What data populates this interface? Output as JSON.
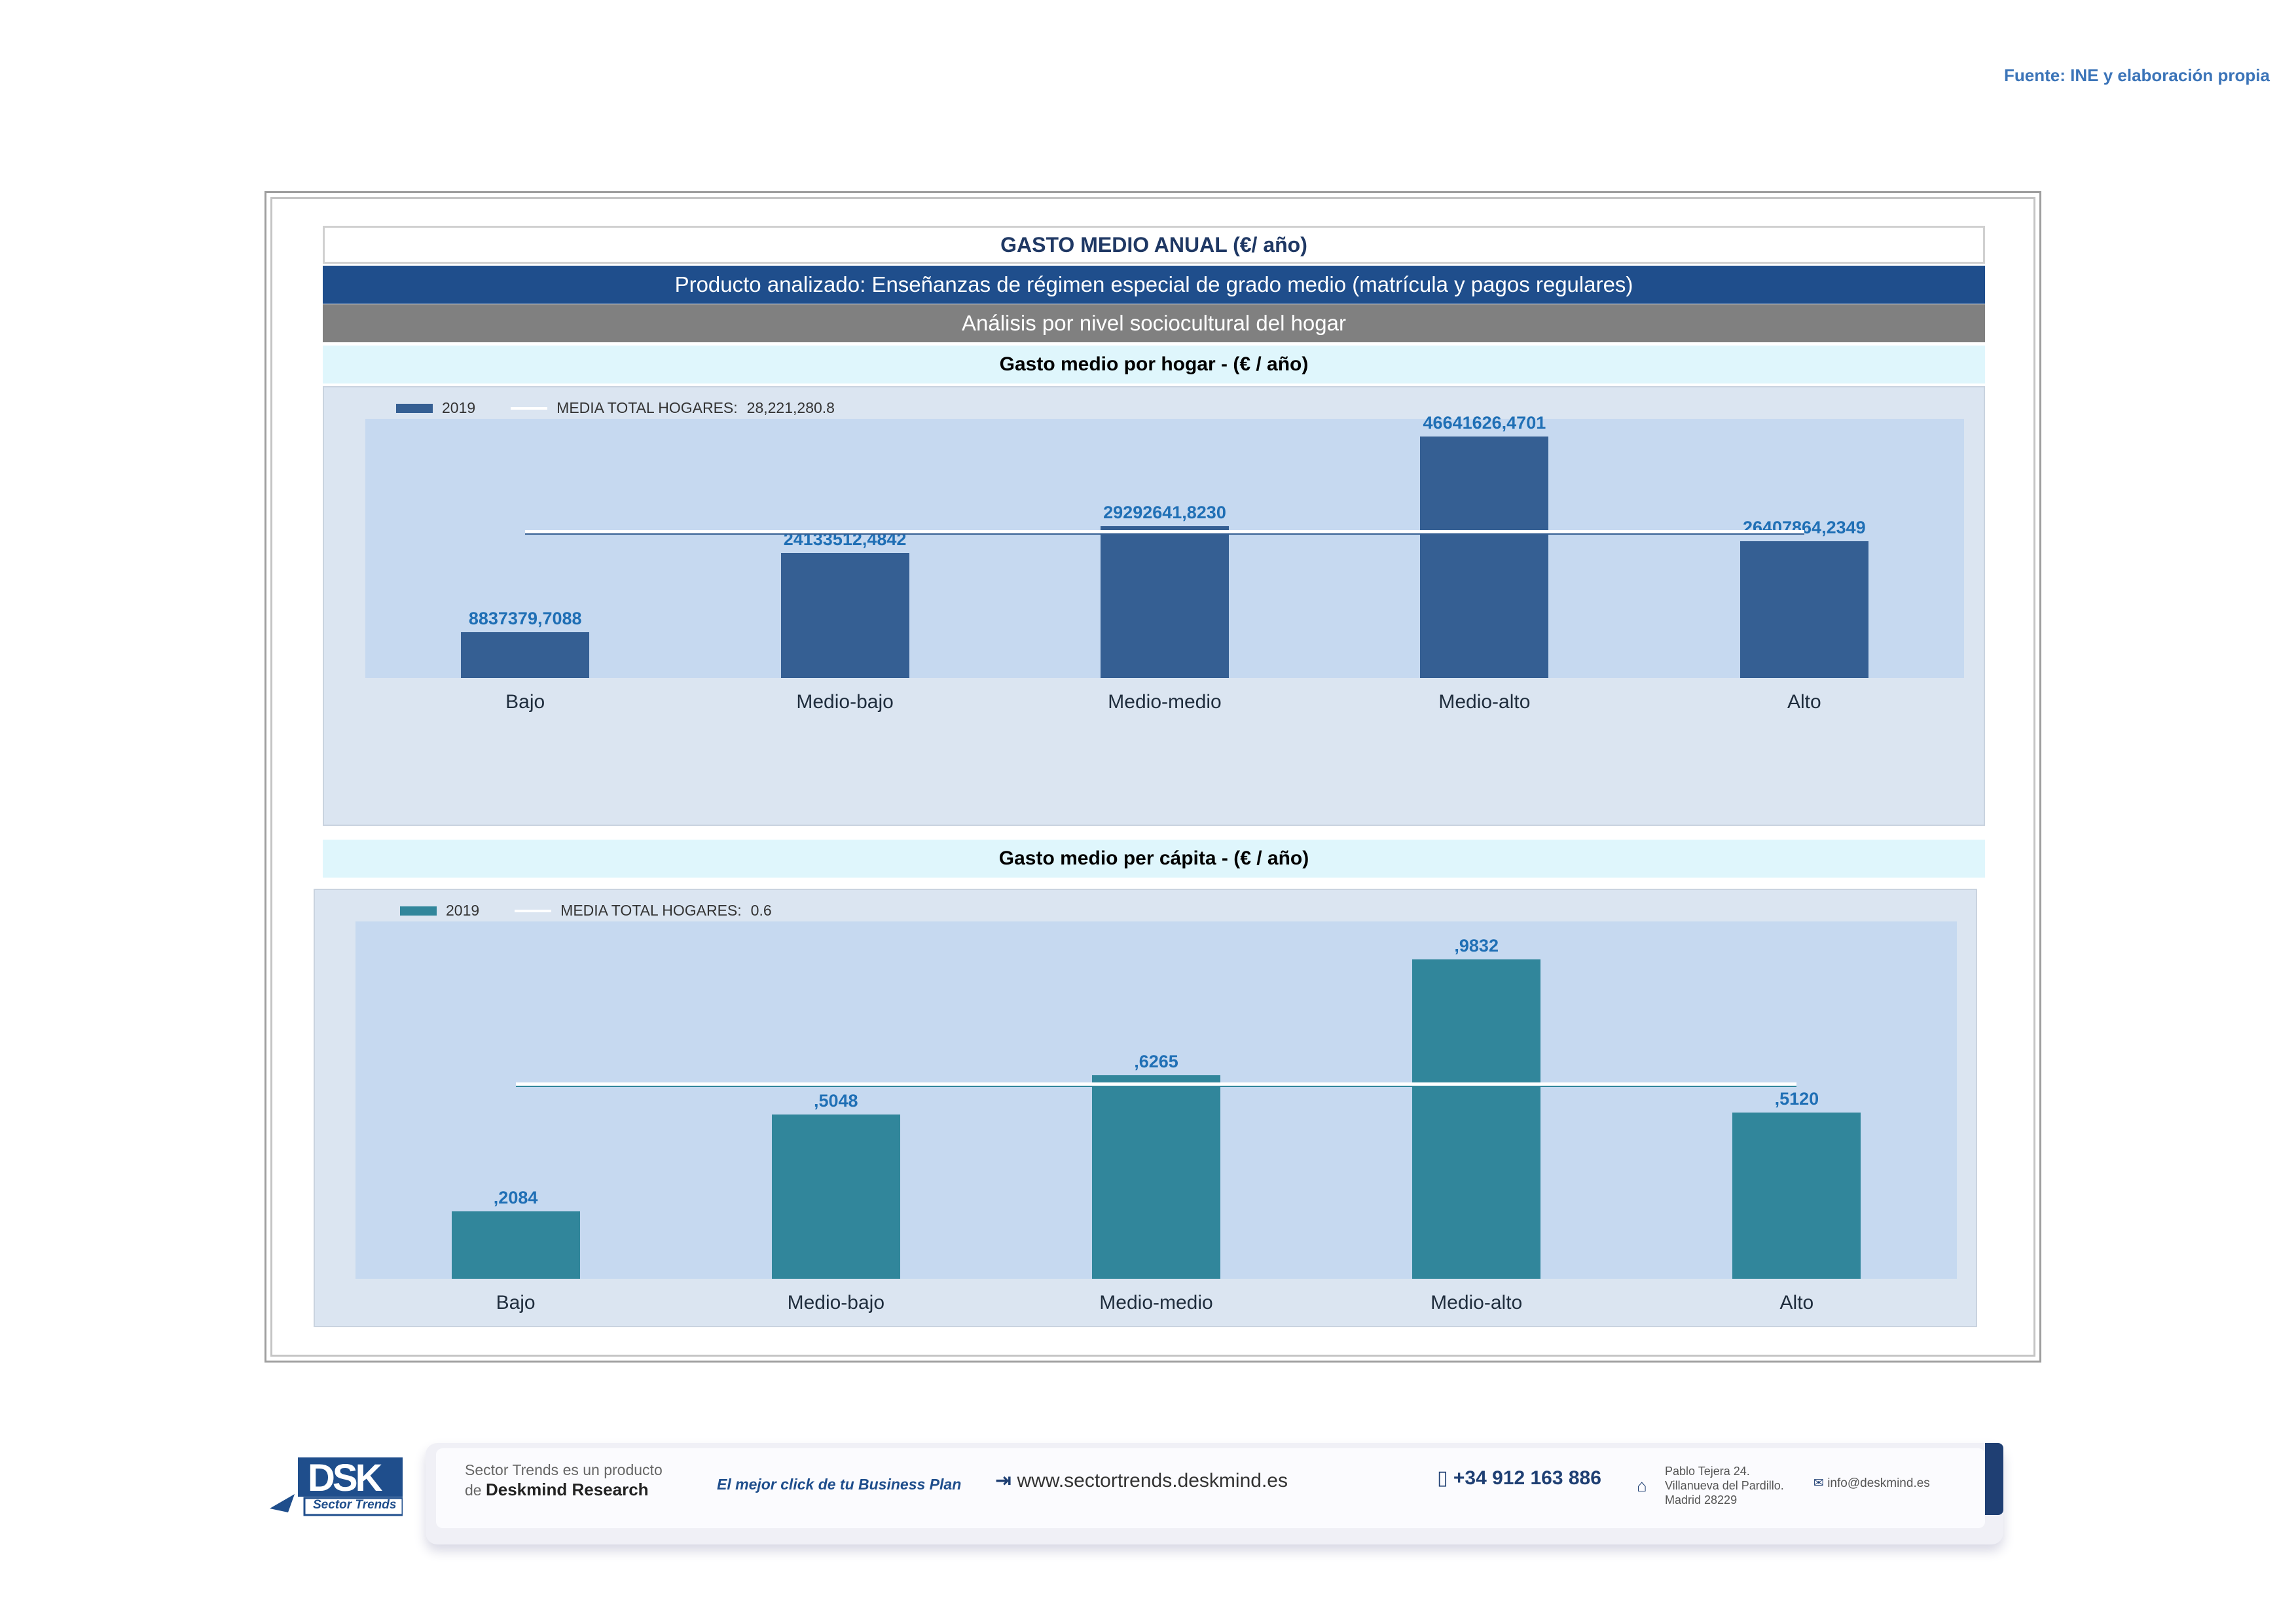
{
  "source": "Fuente: INE y elaboración propia",
  "header": {
    "title": "GASTO MEDIO ANUAL (€/ año)",
    "product": "Producto analizado: Enseñanzas de régimen especial de grado medio  (matrícula y pagos regulares)",
    "analysis": "Análisis por nivel sociocultural del hogar"
  },
  "colors": {
    "bar1": "#355f93",
    "bar2": "#31869b",
    "label": "#1f6fb5",
    "plot_bg": "#c6d9f0",
    "panel_bg": "#dbe5f1"
  },
  "chart_data": [
    {
      "type": "bar",
      "title": "Gasto medio por hogar -  (€ / año)",
      "categories": [
        "Bajo",
        "Medio-bajo",
        "Medio-medio",
        "Medio-alto",
        "Alto"
      ],
      "series": [
        {
          "name": "2019",
          "values": [
            8837379.7088,
            24133512.4842,
            29292641.823,
            46641626.4701,
            26407864.2349
          ]
        }
      ],
      "value_labels": [
        "8837379,7088",
        "24133512,4842",
        "29292641,8230",
        "46641626,4701",
        "26407864,2349"
      ],
      "mean": {
        "label": "MEDIA TOTAL  HOGARES:",
        "value_text": "28,221,280.8",
        "value": 28221280.8
      },
      "ylim": [
        0,
        50000000
      ],
      "legend": "top-left",
      "grid": false
    },
    {
      "type": "bar",
      "title": "Gasto medio per cápita -  (€ / año)",
      "categories": [
        "Bajo",
        "Medio-bajo",
        "Medio-medio",
        "Medio-alto",
        "Alto"
      ],
      "series": [
        {
          "name": "2019",
          "values": [
            0.2084,
            0.5048,
            0.6265,
            0.9832,
            0.512
          ]
        }
      ],
      "value_labels": [
        ",2084",
        ",5048",
        ",6265",
        ",9832",
        ",5120"
      ],
      "mean": {
        "label": "MEDIA TOTAL  HOGARES:",
        "value_text": "0.6",
        "value": 0.6
      },
      "ylim": [
        0,
        1.1
      ],
      "legend": "top-left",
      "grid": false
    }
  ],
  "footer": {
    "line1": "Sector Trends es un producto",
    "line2_prefix": "de",
    "line2_brand": "Deskmind Research",
    "slogan": "El mejor click de tu Business Plan",
    "website": "www.sectortrends.deskmind.es",
    "phone": "+34 912 163 886",
    "address": [
      "Pablo Tejera 24.",
      "Villanueva del Pardillo.",
      "Madrid 28229"
    ],
    "email": "info@deskmind.es",
    "logo_text": "DSK",
    "logo_sub": "Sector Trends"
  }
}
